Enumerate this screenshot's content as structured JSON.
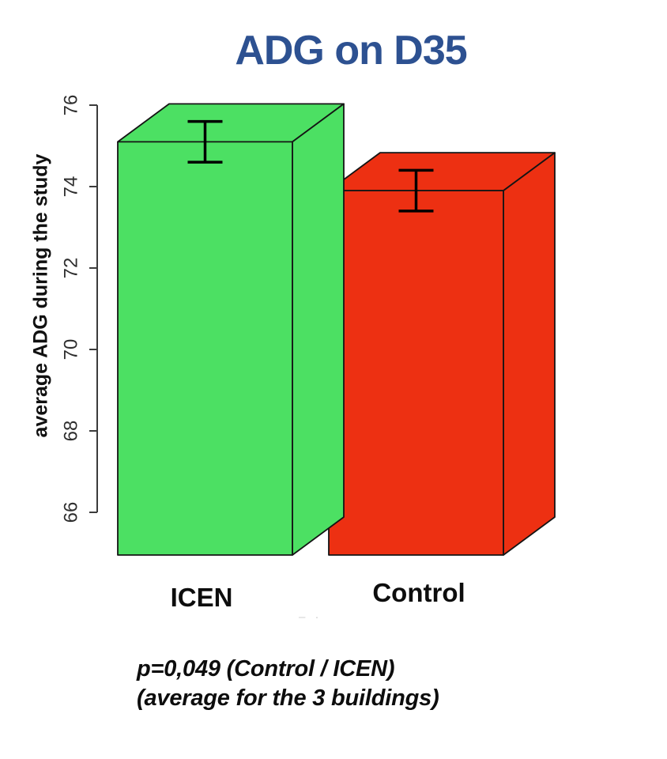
{
  "colors": {
    "background": "#ffffff",
    "title_text": "#2d5191",
    "axis": "#3c3c3c",
    "tick_text": "#2e2e2e",
    "bar_outline": "#141414",
    "error_bar": "#000000"
  },
  "chart_data": {
    "type": "bar",
    "projection": "3d-box",
    "title": "ADG on D35",
    "xlabel": "",
    "ylabel": "average ADG during the study",
    "categories": [
      "ICEN",
      "Control"
    ],
    "values": [
      75.1,
      73.9
    ],
    "error_low": [
      74.6,
      73.4
    ],
    "error_high": [
      75.6,
      74.4
    ],
    "bar_colors": [
      "#4ce063",
      "#ed3012"
    ],
    "ylim": [
      66,
      76
    ],
    "yticks": [
      66,
      68,
      70,
      72,
      74,
      76
    ],
    "grid": false,
    "legend": false,
    "annotations": [
      "p=0,049 (Control / ICEN)",
      "(average for the 3 buildings)"
    ]
  },
  "artifact": {
    "text": "– ·"
  }
}
